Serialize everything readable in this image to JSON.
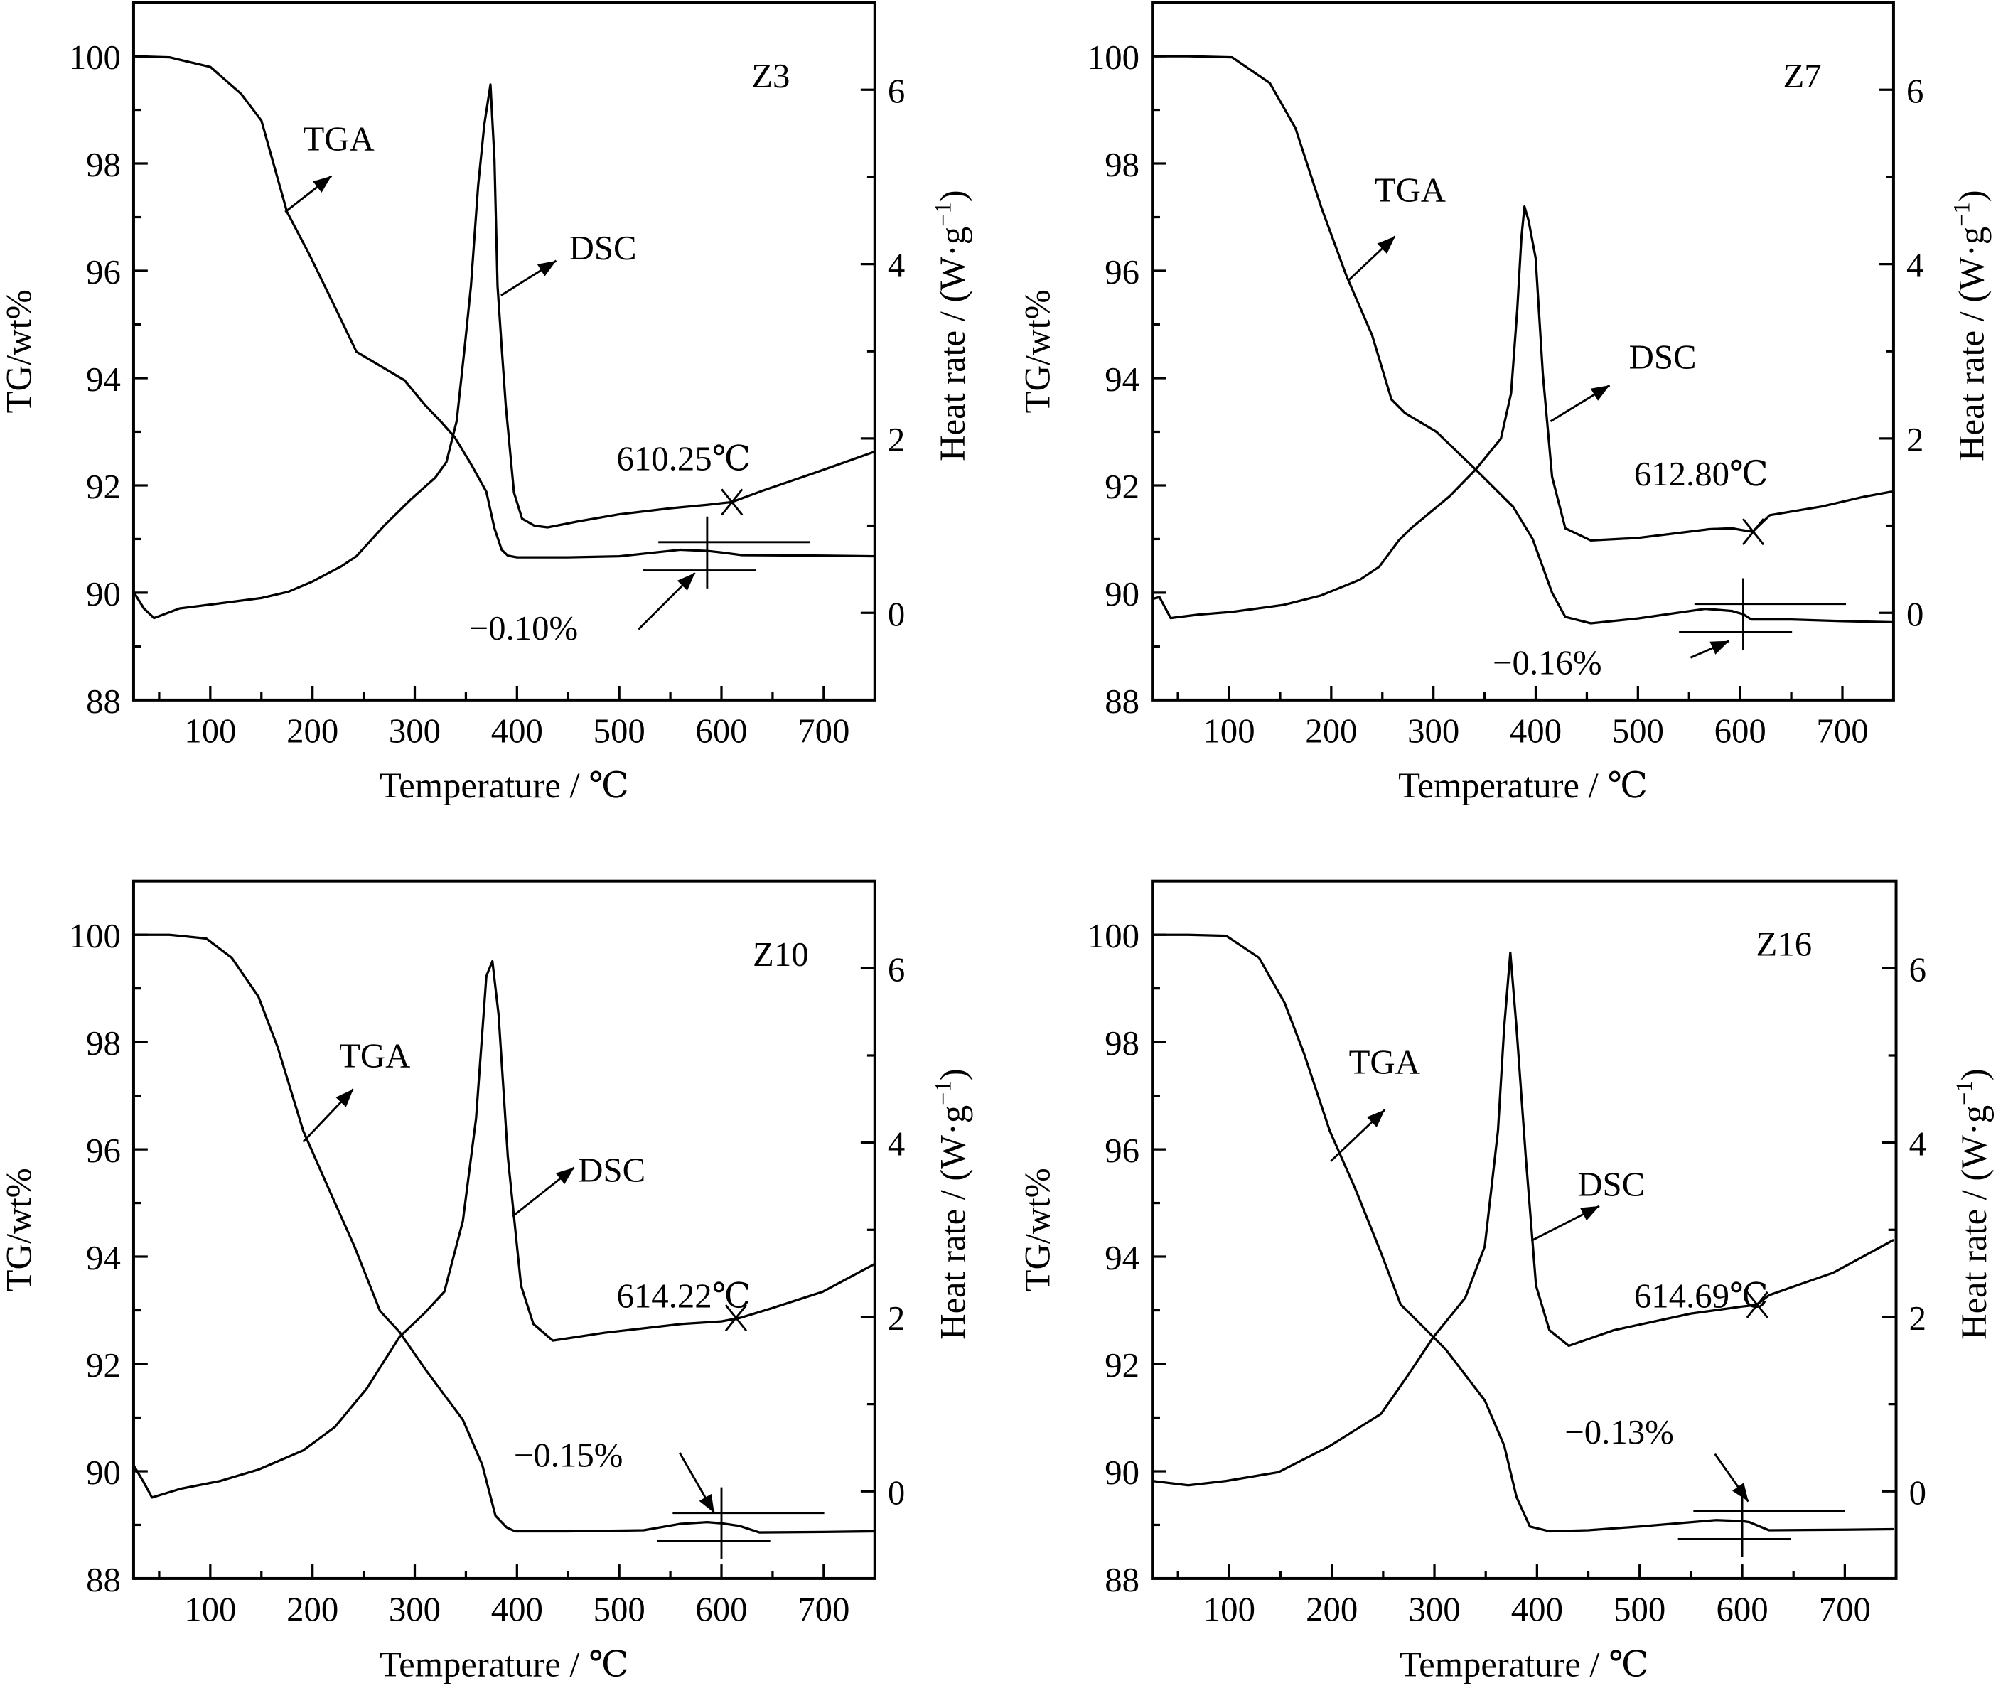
{
  "figure": {
    "description": "TGA-DSC curves of four samples"
  },
  "chart_data": [
    {
      "type": "line",
      "panel": "Z3",
      "title": "Z3",
      "xlabel": "Temperature / ℃",
      "ylabel": "TG/wt%",
      "y2label": "Heat rate / (W·g⁻¹)",
      "y2label_main": "Heat rate / (W·g",
      "y2label_sup": "−1",
      "y2label_close": ")",
      "xlim": [
        25,
        750
      ],
      "ylim": [
        88,
        101
      ],
      "y2lim": [
        -1,
        7
      ],
      "xticks": [
        100,
        200,
        300,
        400,
        500,
        600,
        700
      ],
      "yticks": [
        88,
        90,
        92,
        94,
        96,
        98,
        100
      ],
      "y2ticks": [
        0,
        2,
        4,
        6
      ],
      "grid": false,
      "series": [
        {
          "name": "TGA",
          "axis": "left",
          "x": [
            25,
            60,
            100,
            130,
            150,
            175,
            197,
            220,
            243,
            260,
            290,
            310,
            325,
            339,
            355,
            370,
            378,
            385,
            391,
            400,
            450,
            500,
            560,
            586,
            600,
            620,
            700,
            750
          ],
          "y": [
            100,
            99.98,
            99.8,
            99.3,
            98.8,
            97.1,
            96.3,
            95.4,
            94.49,
            94.3,
            93.96,
            93.5,
            93.2,
            92.9,
            92.4,
            91.88,
            91.2,
            90.8,
            90.69,
            90.66,
            90.66,
            90.68,
            90.8,
            90.78,
            90.75,
            90.7,
            90.69,
            90.68
          ]
        },
        {
          "name": "DSC",
          "axis": "right",
          "x": [
            25,
            35,
            45,
            70,
            104,
            150,
            176,
            200,
            229,
            243,
            270,
            296,
            320,
            331,
            341,
            349,
            355,
            362,
            368,
            374,
            378,
            381,
            385,
            389,
            397,
            405,
            417,
            430,
            460,
            500,
            550,
            586,
            610,
            640,
            690,
            750
          ],
          "y": [
            0.24,
            0.05,
            -0.06,
            0.05,
            0.1,
            0.17,
            0.24,
            0.36,
            0.54,
            0.65,
            1.0,
            1.3,
            1.55,
            1.73,
            2.2,
            3.07,
            3.75,
            4.9,
            5.6,
            6.06,
            5.2,
            3.75,
            3.05,
            2.38,
            1.38,
            1.08,
            1.0,
            0.98,
            1.05,
            1.13,
            1.2,
            1.24,
            1.27,
            1.4,
            1.6,
            1.85
          ]
        }
      ],
      "annotations": {
        "tga_label": "TGA",
        "dsc_label": "DSC",
        "onset_label": "610.25℃",
        "onset_T": 610.25,
        "onset_heat_rate": 1.27,
        "mass_change_label": "−0.10%",
        "mass_change_T": 586,
        "mass_change_TG": 90.75
      }
    },
    {
      "type": "line",
      "panel": "Z7",
      "title": "Z7",
      "xlabel": "Temperature / ℃",
      "ylabel": "TG/wt%",
      "y2label": "Heat rate / (W·g⁻¹)",
      "y2label_main": "Heat rate / (W·g",
      "y2label_sup": "−1",
      "y2label_close": ")",
      "xlim": [
        25,
        750
      ],
      "ylim": [
        88,
        101
      ],
      "y2lim": [
        -1,
        7
      ],
      "xticks": [
        100,
        200,
        300,
        400,
        500,
        600,
        700
      ],
      "yticks": [
        88,
        90,
        92,
        94,
        96,
        98,
        100
      ],
      "y2ticks": [
        0,
        2,
        4,
        6
      ],
      "grid": false,
      "series": [
        {
          "name": "TGA",
          "axis": "left",
          "x": [
            25,
            60,
            103,
            140,
            165,
            190,
            215,
            240,
            259,
            272,
            303,
            341,
            378,
            397,
            416,
            429,
            454,
            500,
            529,
            566,
            592,
            603,
            611,
            650,
            700,
            748
          ],
          "y": [
            100,
            100,
            99.98,
            99.5,
            98.66,
            97.2,
            95.9,
            94.8,
            93.6,
            93.35,
            93.0,
            92.3,
            91.6,
            91.0,
            90.0,
            89.55,
            89.43,
            89.52,
            89.6,
            89.7,
            89.66,
            89.6,
            89.5,
            89.5,
            89.47,
            89.45
          ]
        },
        {
          "name": "DSC",
          "axis": "right",
          "x": [
            25,
            32,
            43,
            70,
            103,
            153,
            190,
            228,
            247,
            266,
            278,
            316,
            341,
            366,
            376,
            382,
            386,
            389,
            393,
            400,
            407,
            416,
            429,
            454,
            500,
            529,
            570,
            592,
            601,
            612,
            629,
            680,
            720,
            748
          ],
          "y": [
            0.16,
            0.18,
            -0.06,
            -0.02,
            0.01,
            0.09,
            0.2,
            0.38,
            0.53,
            0.83,
            0.97,
            1.34,
            1.64,
            2.0,
            2.52,
            3.48,
            4.3,
            4.66,
            4.5,
            4.07,
            2.74,
            1.56,
            0.97,
            0.83,
            0.86,
            0.9,
            0.96,
            0.97,
            0.95,
            0.93,
            1.12,
            1.22,
            1.33,
            1.39
          ]
        }
      ],
      "annotations": {
        "tga_label": "TGA",
        "dsc_label": "DSC",
        "onset_label": "612.80℃",
        "onset_T": 612.8,
        "onset_heat_rate": 0.93,
        "mass_change_label": "−0.16%",
        "mass_change_T": 603,
        "mass_change_TG": 89.6
      }
    },
    {
      "type": "line",
      "panel": "Z10",
      "title": "Z10",
      "xlabel": "Temperature / ℃",
      "ylabel": "TG/wt%",
      "y2label": "Heat rate / (W·g⁻¹)",
      "y2label_main": "Heat rate / (W·g",
      "y2label_sup": "−1",
      "y2label_close": ")",
      "xlim": [
        25,
        750
      ],
      "ylim": [
        88,
        101
      ],
      "y2lim": [
        -1,
        7
      ],
      "xticks": [
        100,
        200,
        300,
        400,
        500,
        600,
        700
      ],
      "yticks": [
        88,
        90,
        92,
        94,
        96,
        98,
        100
      ],
      "y2ticks": [
        0,
        2,
        4,
        6
      ],
      "grid": false,
      "series": [
        {
          "name": "TGA",
          "axis": "left",
          "x": [
            25,
            60,
            96,
            121,
            147,
            166,
            191,
            216,
            241,
            266,
            285,
            310,
            347,
            366,
            379,
            390,
            398,
            450,
            524,
            560,
            586,
            600,
            618,
            637,
            700,
            750
          ],
          "y": [
            100,
            100,
            99.93,
            99.57,
            98.85,
            97.9,
            96.34,
            95.26,
            94.19,
            92.99,
            92.6,
            91.91,
            90.96,
            90.12,
            89.17,
            88.95,
            88.88,
            88.88,
            88.9,
            89.02,
            89.05,
            89.03,
            88.98,
            88.86,
            88.87,
            88.88
          ]
        },
        {
          "name": "DSC",
          "axis": "right",
          "x": [
            25,
            35,
            43,
            71,
            110,
            147,
            191,
            222,
            253,
            285,
            310,
            329,
            347,
            360,
            370,
            376,
            382,
            391,
            404,
            416,
            435,
            486,
            561,
            600,
            618,
            649,
            699,
            750
          ],
          "y": [
            0.3,
            0.1,
            -0.07,
            0.03,
            0.12,
            0.25,
            0.47,
            0.74,
            1.18,
            1.77,
            2.05,
            2.29,
            3.1,
            4.28,
            5.91,
            6.08,
            5.47,
            3.84,
            2.36,
            1.92,
            1.73,
            1.82,
            1.92,
            1.95,
            1.99,
            2.1,
            2.29,
            2.61
          ]
        }
      ],
      "annotations": {
        "tga_label": "TGA",
        "dsc_label": "DSC",
        "onset_label": "614.22℃",
        "onset_T": 614.22,
        "onset_heat_rate": 1.99,
        "mass_change_label": "−0.15%",
        "mass_change_T": 600,
        "mass_change_TG": 89.03
      }
    },
    {
      "type": "line",
      "panel": "Z16",
      "title": "Z16",
      "xlabel": "Temperature / ℃",
      "ylabel": "TG/wt%",
      "y2label": "Heat rate / (W·g⁻¹)",
      "y2label_main": "Heat rate / (W·g",
      "y2label_sup": "−1",
      "y2label_close": ")",
      "xlim": [
        25,
        750
      ],
      "ylim": [
        88,
        101
      ],
      "y2lim": [
        -1,
        7
      ],
      "xticks": [
        100,
        200,
        300,
        400,
        500,
        600,
        700
      ],
      "yticks": [
        88,
        90,
        92,
        94,
        96,
        98,
        100
      ],
      "y2ticks": [
        0,
        2,
        4,
        6
      ],
      "grid": false,
      "series": [
        {
          "name": "TGA",
          "axis": "left",
          "x": [
            25,
            60,
            97,
            129,
            154,
            173,
            198,
            223,
            248,
            267,
            286,
            311,
            349,
            368,
            380,
            393,
            412,
            450,
            500,
            575,
            600,
            607,
            626,
            700,
            747
          ],
          "y": [
            100,
            100,
            99.98,
            99.57,
            98.73,
            97.78,
            96.34,
            95.26,
            94.07,
            93.11,
            92.75,
            92.27,
            91.32,
            90.48,
            89.52,
            88.97,
            88.88,
            88.9,
            88.97,
            89.09,
            89.07,
            89.05,
            88.9,
            88.91,
            88.92
          ]
        },
        {
          "name": "DSC",
          "axis": "right",
          "x": [
            25,
            60,
            97,
            148,
            198,
            248,
            274,
            299,
            330,
            349,
            362,
            368,
            374,
            380,
            389,
            399,
            412,
            431,
            475,
            550,
            600,
            614,
            626,
            689,
            747
          ],
          "y": [
            0.12,
            0.07,
            0.12,
            0.22,
            0.52,
            0.89,
            1.33,
            1.77,
            2.22,
            2.81,
            4.14,
            5.32,
            6.18,
            5.32,
            3.84,
            2.36,
            1.85,
            1.67,
            1.85,
            2.04,
            2.12,
            2.14,
            2.25,
            2.51,
            2.88
          ]
        }
      ],
      "annotations": {
        "tga_label": "TGA",
        "dsc_label": "DSC",
        "onset_label": "614.69℃",
        "onset_T": 614.69,
        "onset_heat_rate": 2.14,
        "mass_change_label": "−0.13%",
        "mass_change_T": 600,
        "mass_change_TG": 89.07
      }
    }
  ]
}
